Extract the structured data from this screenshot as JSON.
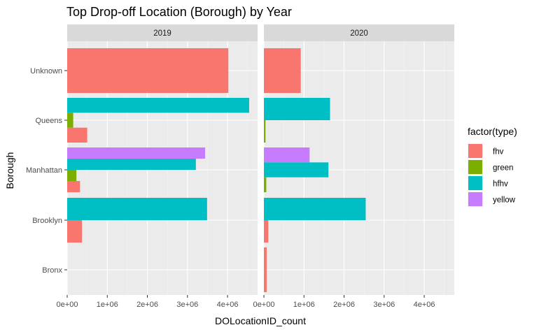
{
  "chart_data": {
    "type": "bar",
    "orientation": "horizontal",
    "position": "dodge",
    "title": "Top Drop-off Location (Borough) by Year",
    "xlabel": "DOLocationID_count",
    "ylabel": "Borough",
    "xlim": [
      0,
      4750000
    ],
    "x_ticks": [
      0,
      1000000,
      2000000,
      3000000,
      4000000
    ],
    "x_tick_labels": [
      "0e+00",
      "1e+06",
      "2e+06",
      "3e+06",
      "4e+06"
    ],
    "categories": [
      "Bronx",
      "Brooklyn",
      "Manhattan",
      "Queens",
      "Unknown"
    ],
    "facet_var": "year",
    "facets": [
      {
        "label": "2019",
        "bars": [
          {
            "borough": "Unknown",
            "type": "fhv",
            "value": 4020000
          },
          {
            "borough": "Queens",
            "type": "hfhv",
            "value": 4540000
          },
          {
            "borough": "Queens",
            "type": "green",
            "value": 150000
          },
          {
            "borough": "Queens",
            "type": "fhv",
            "value": 500000
          },
          {
            "borough": "Manhattan",
            "type": "yellow",
            "value": 3440000
          },
          {
            "borough": "Manhattan",
            "type": "hfhv",
            "value": 3210000
          },
          {
            "borough": "Manhattan",
            "type": "green",
            "value": 230000
          },
          {
            "borough": "Manhattan",
            "type": "fhv",
            "value": 320000
          },
          {
            "borough": "Brooklyn",
            "type": "hfhv",
            "value": 3490000
          },
          {
            "borough": "Brooklyn",
            "type": "fhv",
            "value": 370000
          }
        ]
      },
      {
        "label": "2020",
        "bars": [
          {
            "borough": "Unknown",
            "type": "fhv",
            "value": 920000
          },
          {
            "borough": "Queens",
            "type": "hfhv",
            "value": 1650000
          },
          {
            "borough": "Queens",
            "type": "green",
            "value": 40000
          },
          {
            "borough": "Manhattan",
            "type": "yellow",
            "value": 1140000
          },
          {
            "borough": "Manhattan",
            "type": "hfhv",
            "value": 1610000
          },
          {
            "borough": "Manhattan",
            "type": "green",
            "value": 60000
          },
          {
            "borough": "Brooklyn",
            "type": "hfhv",
            "value": 2540000
          },
          {
            "borough": "Brooklyn",
            "type": "fhv",
            "value": 110000
          },
          {
            "borough": "Bronx",
            "type": "fhv",
            "value": 70000
          }
        ]
      }
    ],
    "legend": {
      "title": "factor(type)",
      "position": "right",
      "entries": [
        {
          "key": "fhv",
          "label": "fhv",
          "color": "#F8766D"
        },
        {
          "key": "green",
          "label": "green",
          "color": "#7CAE00"
        },
        {
          "key": "hfhv",
          "label": "hfhv",
          "color": "#00BFC4"
        },
        {
          "key": "yellow",
          "label": "yellow",
          "color": "#C77CFF"
        }
      ]
    },
    "theme": {
      "panel_background": "#EBEBEB",
      "strip_background": "#D9D9D9",
      "grid_major": "#FFFFFF",
      "grid_minor": "#F5F5F5",
      "grid": true
    }
  }
}
